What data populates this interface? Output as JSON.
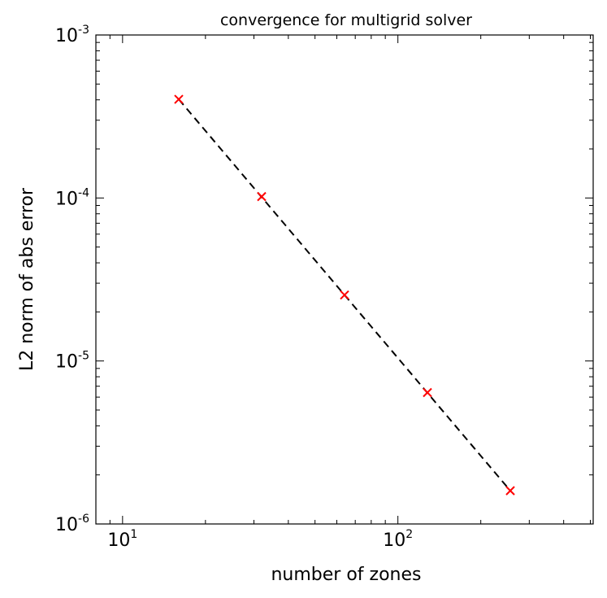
{
  "chart_data": {
    "type": "scatter",
    "title": "convergence for multigrid solver",
    "xlabel": "number of zones",
    "ylabel": "L2 norm of abs error",
    "xscale": "log",
    "yscale": "log",
    "xlim": [
      8,
      512
    ],
    "ylim": [
      1e-06,
      0.001
    ],
    "grid": false,
    "x_ticks": [
      {
        "value": 10,
        "base": "10",
        "exp": "1"
      },
      {
        "value": 100,
        "base": "10",
        "exp": "2"
      }
    ],
    "y_ticks": [
      {
        "value": 1e-06,
        "base": "10",
        "exp": "-6"
      },
      {
        "value": 1e-05,
        "base": "10",
        "exp": "-5"
      },
      {
        "value": 0.0001,
        "base": "10",
        "exp": "-4"
      },
      {
        "value": 0.001,
        "base": "10",
        "exp": "-3"
      }
    ],
    "series": [
      {
        "marker": "x",
        "color": "#ff0000",
        "x": [
          16,
          32,
          64,
          128,
          256
        ],
        "y": [
          0.000403,
          0.000102,
          2.54e-05,
          6.4e-06,
          1.6e-06
        ]
      },
      {
        "line_style": "dashed",
        "color": "#000000",
        "x": [
          16,
          256
        ],
        "y": [
          0.000403,
          1.6e-06
        ]
      }
    ]
  }
}
